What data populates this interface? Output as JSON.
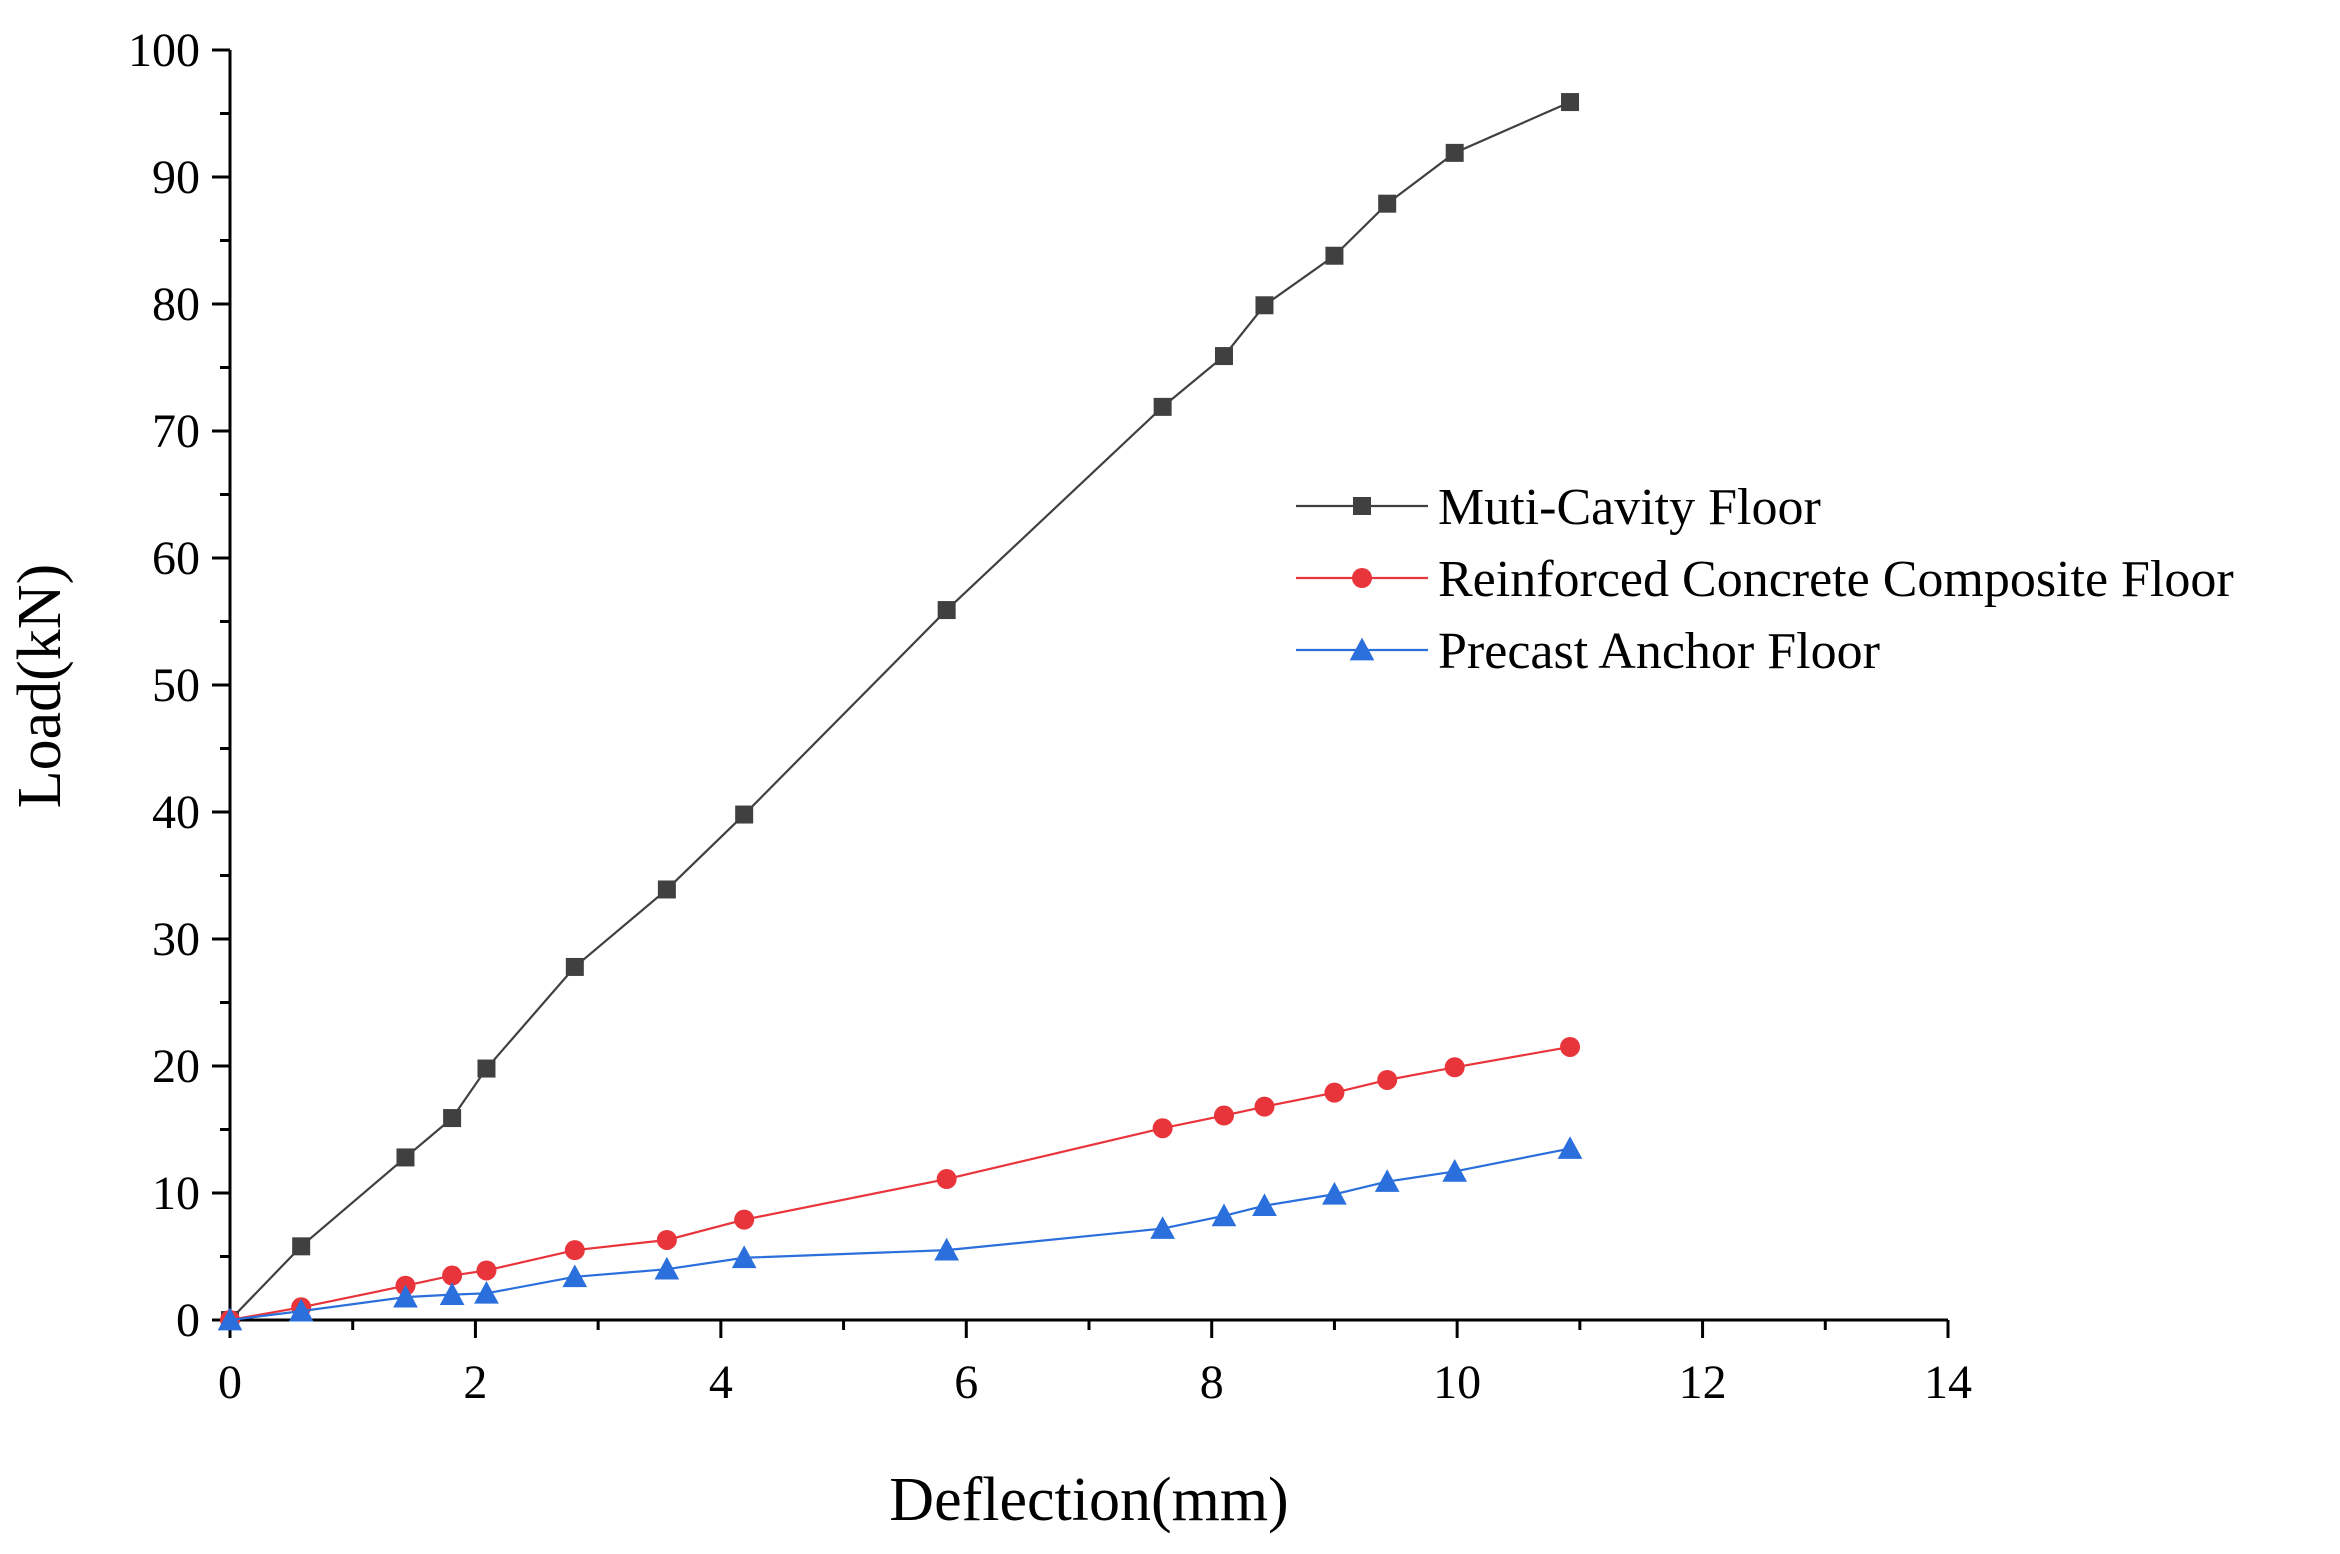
{
  "chart_data": {
    "type": "line",
    "title": "",
    "xlabel": "Deflection(mm)",
    "ylabel": "Load(kN)",
    "xlim": [
      0,
      14
    ],
    "ylim": [
      0,
      100
    ],
    "x_ticks": [
      "0",
      "2",
      "4",
      "6",
      "8",
      "10",
      "12",
      "14"
    ],
    "y_ticks": [
      "0",
      "10",
      "20",
      "30",
      "40",
      "50",
      "60",
      "70",
      "80",
      "90",
      "100"
    ],
    "grid": false,
    "legend_position": "center-right",
    "series": [
      {
        "name": "Muti-Cavity Floor",
        "color": "#404040",
        "marker": "square",
        "x": [
          0,
          0.58,
          1.43,
          1.81,
          2.09,
          2.81,
          3.56,
          4.19,
          5.84,
          7.6,
          8.1,
          8.43,
          9.0,
          9.43,
          9.98,
          10.92
        ],
        "y": [
          0,
          5.8,
          12.8,
          15.9,
          19.8,
          27.8,
          33.9,
          39.8,
          55.9,
          71.9,
          75.9,
          79.9,
          83.8,
          87.9,
          91.9,
          95.9
        ]
      },
      {
        "name": "Reinforced Concrete Composite Floor",
        "color": "#e8353b",
        "marker": "circle",
        "x": [
          0,
          0.58,
          1.43,
          1.81,
          2.09,
          2.81,
          3.56,
          4.19,
          5.84,
          7.6,
          8.1,
          8.43,
          9.0,
          9.43,
          9.98,
          10.92
        ],
        "y": [
          0,
          1.0,
          2.7,
          3.5,
          3.9,
          5.5,
          6.3,
          7.9,
          11.1,
          15.1,
          16.1,
          16.8,
          17.9,
          18.9,
          19.9,
          21.5
        ]
      },
      {
        "name": "Precast Anchor Floor",
        "color": "#2a6fdc",
        "marker": "triangle",
        "x": [
          0,
          0.58,
          1.43,
          1.81,
          2.09,
          2.81,
          3.56,
          4.19,
          5.84,
          7.6,
          8.1,
          8.43,
          9.0,
          9.43,
          9.98,
          10.92
        ],
        "y": [
          0,
          0.7,
          1.8,
          2.0,
          2.1,
          3.4,
          4.0,
          4.9,
          5.5,
          7.2,
          8.2,
          9.0,
          9.9,
          10.9,
          11.7,
          13.5
        ]
      }
    ]
  }
}
